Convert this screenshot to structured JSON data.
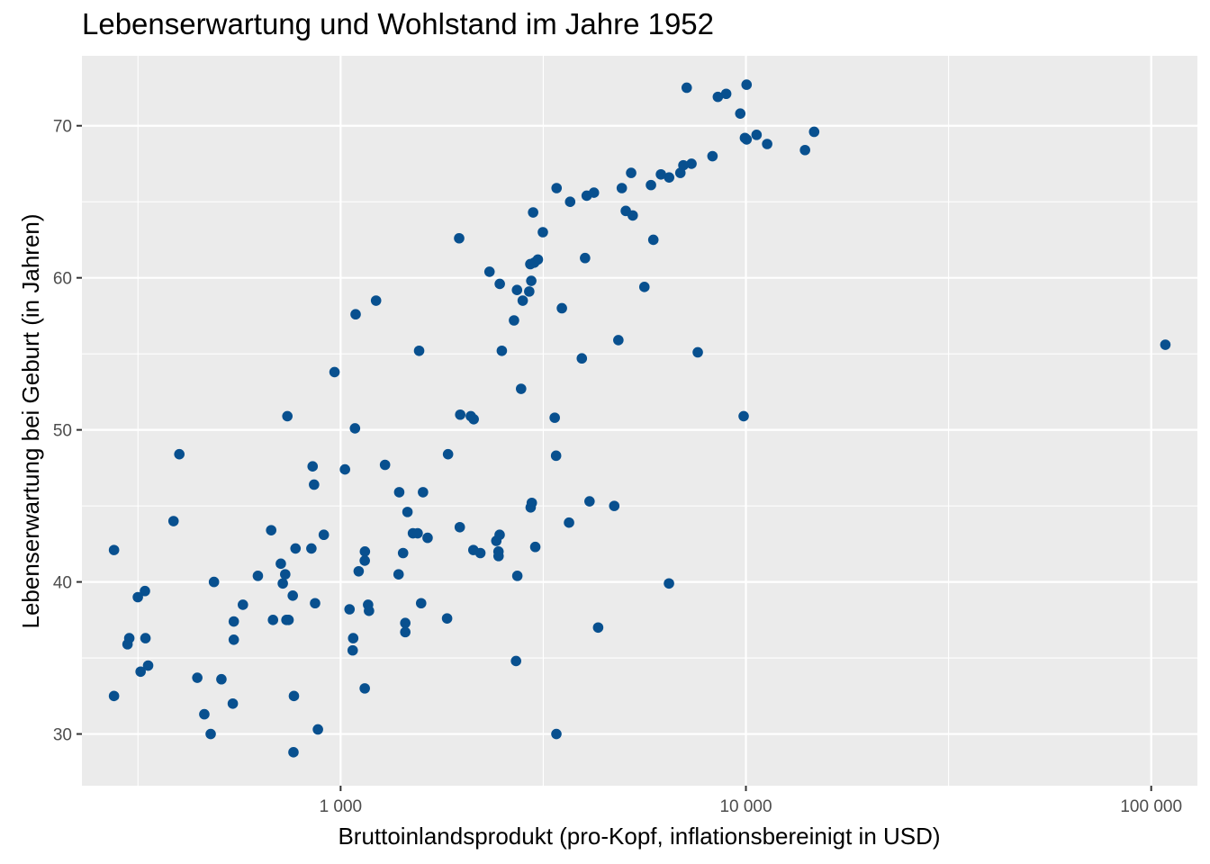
{
  "chart_data": {
    "type": "scatter",
    "title": "Lebenserwartung und Wohlstand im Jahre 1952",
    "xlabel": "Bruttoinlandsprodukt (pro-Kopf, inflationsbereinigt in USD)",
    "ylabel": "Lebenserwartung bei Geburt (in Jahren)",
    "x_scale": "log10",
    "xlim": [
      230,
      130000
    ],
    "ylim": [
      26.6,
      74.6
    ],
    "x_ticks": [
      1000,
      10000,
      100000
    ],
    "x_tick_labels": [
      "1 000",
      "10 000",
      "100 000"
    ],
    "y_ticks": [
      30,
      40,
      50,
      60,
      70
    ],
    "y_tick_labels": [
      "30",
      "40",
      "50",
      "60",
      "70"
    ],
    "grid": true,
    "panel_color": "#ebebeb",
    "grid_color": "#ffffff",
    "point_color": "#08508f",
    "points": [
      [
        7144,
        72.5
      ],
      [
        10038,
        72.7
      ],
      [
        8940,
        72.1
      ],
      [
        8527,
        71.9
      ],
      [
        9685,
        70.8
      ],
      [
        10041,
        69.1
      ],
      [
        10624,
        69.4
      ],
      [
        9944,
        69.2
      ],
      [
        14734,
        69.6
      ],
      [
        11283,
        68.8
      ],
      [
        13990,
        68.4
      ],
      [
        8270,
        68.0
      ],
      [
        7340,
        67.5
      ],
      [
        7010,
        67.4
      ],
      [
        6891,
        66.9
      ],
      [
        6464,
        66.6
      ],
      [
        6170,
        66.8
      ],
      [
        5831,
        66.1
      ],
      [
        5210,
        66.9
      ],
      [
        4941,
        65.9
      ],
      [
        5054,
        64.4
      ],
      [
        5257,
        64.1
      ],
      [
        5910,
        62.5
      ],
      [
        3411,
        65.9
      ],
      [
        4047,
        65.4
      ],
      [
        4217,
        65.6
      ],
      [
        3684,
        65.0
      ],
      [
        2985,
        64.3
      ],
      [
        3155,
        63.0
      ],
      [
        1961,
        62.6
      ],
      [
        4010,
        61.3
      ],
      [
        3067,
        61.2
      ],
      [
        3005,
        61.0
      ],
      [
        2938,
        60.9
      ],
      [
        2330,
        60.4
      ],
      [
        2470,
        59.6
      ],
      [
        2954,
        59.8
      ],
      [
        2724,
        59.2
      ],
      [
        2920,
        59.1
      ],
      [
        5617,
        59.4
      ],
      [
        2814,
        58.5
      ],
      [
        1223,
        58.5
      ],
      [
        3515,
        58.0
      ],
      [
        2678,
        57.2
      ],
      [
        1089,
        57.6
      ],
      [
        1562,
        55.2
      ],
      [
        2499,
        55.2
      ],
      [
        4845,
        55.9
      ],
      [
        3937,
        54.7
      ],
      [
        7607,
        55.1
      ],
      [
        108372,
        55.6
      ],
      [
        966,
        53.8
      ],
      [
        2788,
        52.7
      ],
      [
        739,
        50.9
      ],
      [
        1973,
        51.0
      ],
      [
        2095,
        50.9
      ],
      [
        2130,
        50.7
      ],
      [
        3375,
        50.8
      ],
      [
        9873,
        50.9
      ],
      [
        1085,
        50.1
      ],
      [
        1841,
        48.4
      ],
      [
        3401,
        48.3
      ],
      [
        400,
        48.4
      ],
      [
        853,
        47.6
      ],
      [
        1287,
        47.7
      ],
      [
        1025,
        47.4
      ],
      [
        860,
        46.4
      ],
      [
        1395,
        45.9
      ],
      [
        1597,
        45.9
      ],
      [
        2963,
        45.2
      ],
      [
        4113,
        45.3
      ],
      [
        4733,
        45.0
      ],
      [
        2944,
        44.9
      ],
      [
        1462,
        44.6
      ],
      [
        387,
        44.0
      ],
      [
        3661,
        43.9
      ],
      [
        1508,
        43.2
      ],
      [
        1549,
        43.2
      ],
      [
        909,
        43.1
      ],
      [
        1639,
        42.9
      ],
      [
        2468,
        43.1
      ],
      [
        674,
        43.4
      ],
      [
        1968,
        43.6
      ],
      [
        2422,
        42.7
      ],
      [
        2452,
        42.0
      ],
      [
        2453,
        41.7
      ],
      [
        2126,
        42.1
      ],
      [
        2212,
        41.9
      ],
      [
        3022,
        42.3
      ],
      [
        774,
        42.2
      ],
      [
        847,
        42.2
      ],
      [
        1148,
        42.0
      ],
      [
        1147,
        41.4
      ],
      [
        1426,
        41.9
      ],
      [
        712,
        41.2
      ],
      [
        730,
        40.5
      ],
      [
        625,
        40.4
      ],
      [
        1108,
        40.7
      ],
      [
        1390,
        40.5
      ],
      [
        2729,
        40.4
      ],
      [
        487,
        40.0
      ],
      [
        720,
        39.9
      ],
      [
        6459,
        39.9
      ],
      [
        329,
        39.4
      ],
      [
        316,
        39.0
      ],
      [
        762,
        39.1
      ],
      [
        865,
        38.6
      ],
      [
        1169,
        38.5
      ],
      [
        1175,
        38.1
      ],
      [
        574,
        38.5
      ],
      [
        1580,
        38.6
      ],
      [
        1831,
        37.6
      ],
      [
        1052,
        38.2
      ],
      [
        1444,
        37.3
      ],
      [
        681,
        37.5
      ],
      [
        744,
        37.5
      ],
      [
        735,
        37.5
      ],
      [
        545,
        37.4
      ],
      [
        4319,
        37.0
      ],
      [
        1444,
        36.7
      ],
      [
        330,
        36.3
      ],
      [
        301,
        36.3
      ],
      [
        298,
        35.9
      ],
      [
        1074,
        36.3
      ],
      [
        545,
        36.2
      ],
      [
        1071,
        35.5
      ],
      [
        2709,
        34.8
      ],
      [
        335,
        34.5
      ],
      [
        321,
        34.1
      ],
      [
        443,
        33.7
      ],
      [
        508,
        33.6
      ],
      [
        1147,
        33.0
      ],
      [
        542,
        32.0
      ],
      [
        276,
        32.5
      ],
      [
        767,
        32.5
      ],
      [
        461,
        31.3
      ],
      [
        879,
        30.3
      ],
      [
        478,
        30.0
      ],
      [
        3407,
        30.0
      ],
      [
        765,
        28.8
      ],
      [
        276,
        42.1
      ]
    ]
  }
}
